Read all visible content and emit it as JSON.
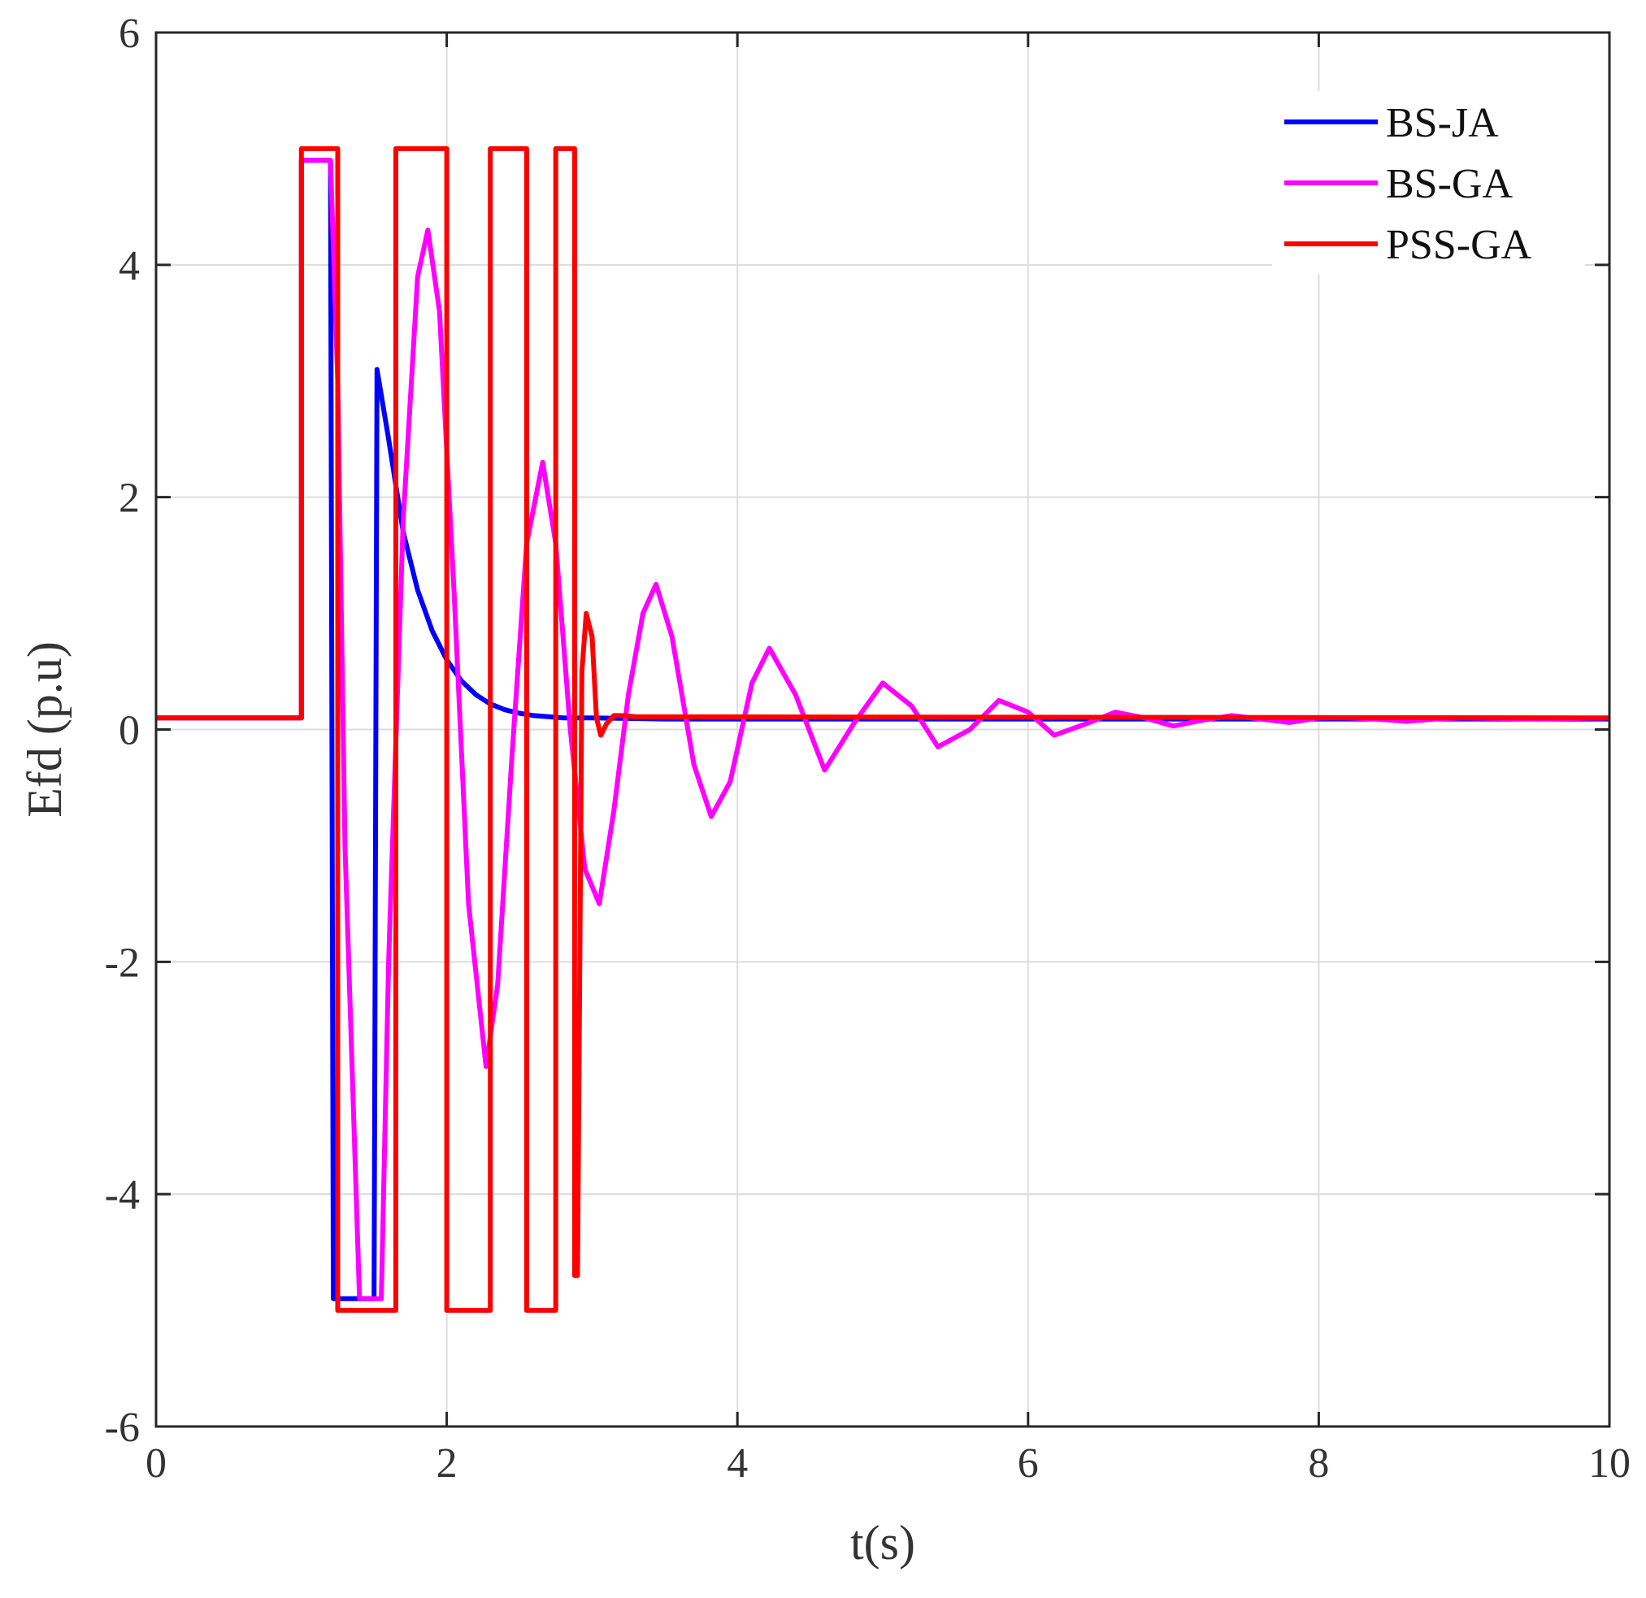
{
  "chart_data": {
    "type": "line",
    "title": "",
    "xlabel": "t(s)",
    "ylabel": "Efd (p.u)",
    "xlim": [
      0,
      10
    ],
    "ylim": [
      -6,
      6
    ],
    "xticks": [
      0,
      2,
      4,
      6,
      8,
      10
    ],
    "yticks": [
      -6,
      -4,
      -2,
      0,
      2,
      4,
      6
    ],
    "xtick_labels": [
      "0",
      "2",
      "4",
      "6",
      "8",
      "10"
    ],
    "ytick_labels": [
      "-6",
      "-4",
      "-2",
      "0",
      "2",
      "4",
      "6"
    ],
    "grid": true,
    "legend_position": "top-right",
    "series": [
      {
        "name": "BS-JA",
        "color": "#0000ff",
        "x": [
          0,
          1.0,
          1.0,
          1.2,
          1.2,
          1.22,
          1.22,
          1.5,
          1.52,
          1.6,
          1.7,
          1.8,
          1.9,
          2.0,
          2.1,
          2.2,
          2.3,
          2.4,
          2.5,
          2.6,
          2.7,
          2.8,
          2.9,
          3.0,
          3.5,
          4.0,
          10.0
        ],
        "values": [
          0.1,
          0.1,
          4.9,
          4.9,
          4.9,
          -4.9,
          -4.9,
          -4.9,
          3.1,
          2.5,
          1.7,
          1.2,
          0.85,
          0.6,
          0.42,
          0.3,
          0.22,
          0.17,
          0.14,
          0.12,
          0.11,
          0.1,
          0.1,
          0.1,
          0.09,
          0.09,
          0.09
        ]
      },
      {
        "name": "BS-GA",
        "color": "#ff00ff",
        "x": [
          0,
          1.0,
          1.0,
          1.1,
          1.2,
          1.25,
          1.3,
          1.4,
          1.5,
          1.55,
          1.6,
          1.7,
          1.8,
          1.87,
          1.95,
          2.05,
          2.15,
          2.27,
          2.35,
          2.45,
          2.55,
          2.66,
          2.75,
          2.85,
          2.95,
          3.05,
          3.15,
          3.25,
          3.35,
          3.44,
          3.55,
          3.7,
          3.82,
          3.95,
          4.1,
          4.22,
          4.4,
          4.6,
          4.8,
          5.0,
          5.2,
          5.38,
          5.6,
          5.8,
          6.0,
          6.18,
          6.4,
          6.6,
          6.8,
          7.0,
          7.2,
          7.4,
          7.6,
          7.8,
          8.0,
          8.2,
          8.4,
          8.6,
          8.8,
          9.0,
          9.5,
          10.0
        ],
        "values": [
          0.1,
          0.1,
          4.9,
          4.9,
          4.9,
          3.0,
          -1.0,
          -4.9,
          -4.9,
          -4.9,
          -2.0,
          1.8,
          3.9,
          4.3,
          3.6,
          1.2,
          -1.5,
          -2.9,
          -2.2,
          -0.2,
          1.6,
          2.3,
          1.6,
          0.0,
          -1.2,
          -1.5,
          -0.7,
          0.3,
          1.0,
          1.25,
          0.8,
          -0.3,
          -0.75,
          -0.45,
          0.4,
          0.7,
          0.3,
          -0.35,
          0.05,
          0.4,
          0.2,
          -0.15,
          0.0,
          0.25,
          0.15,
          -0.05,
          0.05,
          0.15,
          0.1,
          0.03,
          0.08,
          0.12,
          0.09,
          0.06,
          0.1,
          0.1,
          0.09,
          0.07,
          0.09,
          0.1,
          0.09,
          0.1
        ]
      },
      {
        "name": "PSS-GA",
        "color": "#ff0000",
        "x": [
          0,
          1.0,
          1.0,
          1.25,
          1.25,
          1.65,
          1.65,
          2.0,
          2.0,
          2.3,
          2.3,
          2.55,
          2.55,
          2.75,
          2.75,
          2.88,
          2.88,
          2.9,
          2.93,
          2.96,
          3.0,
          3.03,
          3.06,
          3.1,
          3.15,
          3.2,
          3.3,
          10.0
        ],
        "values": [
          0.1,
          0.1,
          5.0,
          5.0,
          -5.0,
          -5.0,
          5.0,
          5.0,
          -5.0,
          -5.0,
          5.0,
          5.0,
          -5.0,
          -5.0,
          5.0,
          5.0,
          -4.7,
          -4.7,
          0.5,
          1.0,
          0.8,
          0.1,
          -0.05,
          0.05,
          0.12,
          0.12,
          0.11,
          0.1
        ]
      }
    ]
  }
}
